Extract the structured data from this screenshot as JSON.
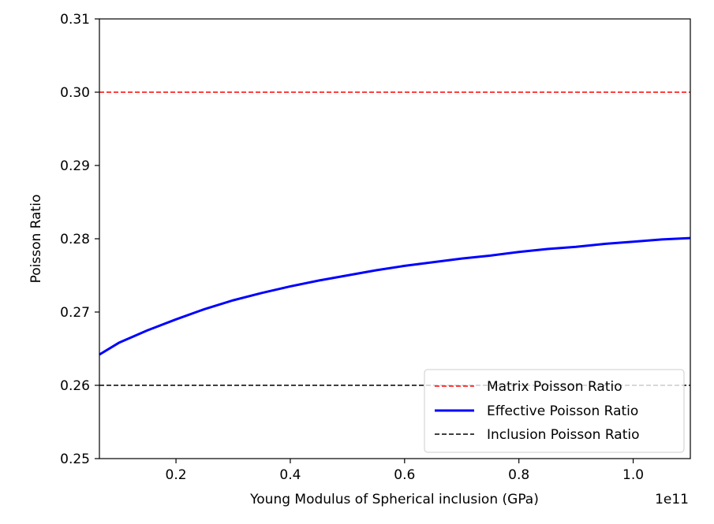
{
  "chart_data": {
    "type": "line",
    "title": "",
    "xlabel": "Young Modulus of Spherical inclusion (GPa)",
    "ylabel": "Poisson Ratio",
    "x_offset_label": "1e11",
    "xlim": [
      0.066,
      1.1
    ],
    "ylim": [
      0.25,
      0.31
    ],
    "x_ticks": [
      0.2,
      0.4,
      0.6,
      0.8,
      1.0
    ],
    "x_tick_labels": [
      "0.2",
      "0.4",
      "0.6",
      "0.8",
      "1.0"
    ],
    "y_ticks": [
      0.25,
      0.26,
      0.27,
      0.28,
      0.29,
      0.3,
      0.31
    ],
    "y_tick_labels": [
      "0.25",
      "0.26",
      "0.27",
      "0.28",
      "0.29",
      "0.30",
      "0.31"
    ],
    "grid": false,
    "legend_position": "lower right",
    "series": [
      {
        "name": "Matrix Poisson Ratio",
        "color": "#ff0000",
        "style": "dashed",
        "x": [
          0.066,
          1.1
        ],
        "y": [
          0.3,
          0.3
        ]
      },
      {
        "name": "Effective Poisson Ratio",
        "color": "#0000ff",
        "style": "solid",
        "x": [
          0.066,
          0.1,
          0.15,
          0.2,
          0.25,
          0.3,
          0.35,
          0.4,
          0.45,
          0.5,
          0.55,
          0.6,
          0.65,
          0.7,
          0.75,
          0.8,
          0.85,
          0.9,
          0.95,
          1.0,
          1.05,
          1.1
        ],
        "y": [
          0.2642,
          0.2658,
          0.2675,
          0.269,
          0.2704,
          0.2716,
          0.2726,
          0.2735,
          0.2743,
          0.275,
          0.2757,
          0.2763,
          0.2768,
          0.2773,
          0.2777,
          0.2782,
          0.2786,
          0.2789,
          0.2793,
          0.2796,
          0.2799,
          0.2801
        ]
      },
      {
        "name": "Inclusion Poisson Ratio",
        "color": "#000000",
        "style": "dashed",
        "x": [
          0.066,
          1.1
        ],
        "y": [
          0.26,
          0.26
        ]
      }
    ]
  }
}
